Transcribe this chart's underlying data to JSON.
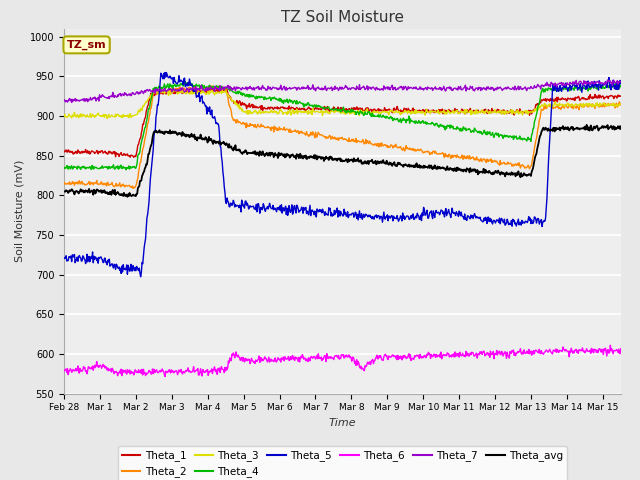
{
  "title": "TZ Soil Moisture",
  "xlabel": "Time",
  "ylabel": "Soil Moisture (mV)",
  "ylim": [
    550,
    1010
  ],
  "yticks": [
    550,
    600,
    650,
    700,
    750,
    800,
    850,
    900,
    950,
    1000
  ],
  "legend_box_label": "TZ_sm",
  "series_colors": {
    "Theta_1": "#cc0000",
    "Theta_2": "#ff8800",
    "Theta_3": "#dddd00",
    "Theta_4": "#00bb00",
    "Theta_5": "#0000cc",
    "Theta_6": "#ff00ff",
    "Theta_7": "#9900cc",
    "Theta_avg": "#000000"
  },
  "bg_color": "#e8e8e8",
  "plot_bg": "#eeeeee"
}
